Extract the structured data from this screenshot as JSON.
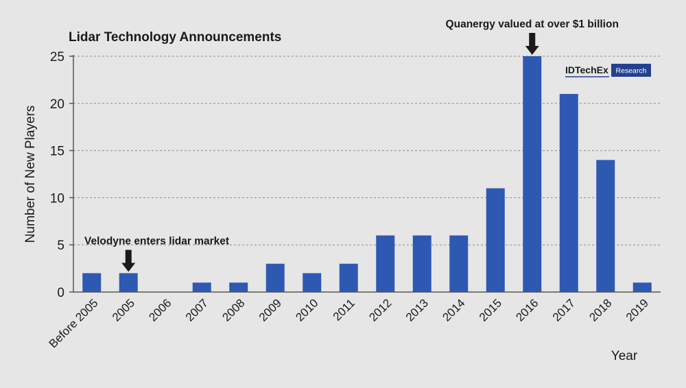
{
  "chart_data": {
    "type": "bar",
    "title": "Lidar Technology Announcements",
    "xlabel": "Year",
    "ylabel": "Number of New Players",
    "ylim": [
      0,
      25
    ],
    "yticks": [
      "0",
      "5",
      "10",
      "15",
      "20",
      "25"
    ],
    "grid": "horizontal dashed",
    "categories": [
      "Before 2005",
      "2005",
      "2006",
      "2007",
      "2008",
      "2009",
      "2010",
      "2011",
      "2012",
      "2013",
      "2014",
      "2015",
      "2016",
      "2017",
      "2018",
      "2019"
    ],
    "series": [
      {
        "values": [
          2,
          2,
          0,
          1,
          1,
          3,
          2,
          3,
          6,
          6,
          6,
          11,
          25,
          21,
          14,
          1
        ]
      }
    ],
    "annotations": [
      {
        "text": "Velodyne enters lidar market",
        "category": "2005"
      },
      {
        "text": "Quanergy valued at over $1 billion",
        "category": "2016"
      }
    ]
  },
  "logo": {
    "text": "IDTechEx",
    "badge": "Research"
  },
  "colors": {
    "bar": "#2e59b3",
    "background": "#e6e6e6",
    "grid": "#8c8c8c",
    "axis": "#555555",
    "logo_badge": "#23418f"
  }
}
